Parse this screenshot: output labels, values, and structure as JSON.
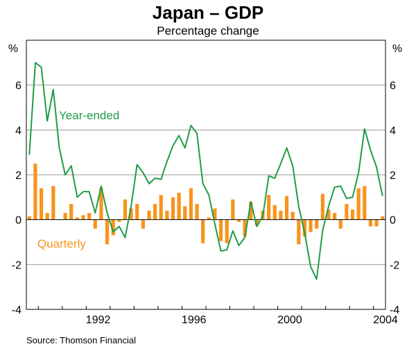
{
  "chart_data": {
    "type": "bar+line",
    "title": "Japan – GDP",
    "subtitle": "Percentage change",
    "unit_left": "%",
    "unit_right": "%",
    "source": "Source: Thomson Financial",
    "ylim": [
      -4,
      8
    ],
    "yticks": [
      -4,
      -2,
      0,
      2,
      4,
      6
    ],
    "xlim": [
      1989.5,
      2004.5
    ],
    "xticks": [
      1992,
      1996,
      2000,
      2004
    ],
    "grid": true,
    "series": [
      {
        "name": "Quarterly",
        "kind": "bar",
        "color": "#F7941D",
        "x": [
          1989.625,
          1989.875,
          1990.125,
          1990.375,
          1990.625,
          1990.875,
          1991.125,
          1991.375,
          1991.625,
          1991.875,
          1992.125,
          1992.375,
          1992.625,
          1992.875,
          1993.125,
          1993.375,
          1993.625,
          1993.875,
          1994.125,
          1994.375,
          1994.625,
          1994.875,
          1995.125,
          1995.375,
          1995.625,
          1995.875,
          1996.125,
          1996.375,
          1996.625,
          1996.875,
          1997.125,
          1997.375,
          1997.625,
          1997.875,
          1998.125,
          1998.375,
          1998.625,
          1998.875,
          1999.125,
          1999.375,
          1999.625,
          1999.875,
          2000.125,
          2000.375,
          2000.625,
          2000.875,
          2001.125,
          2001.375,
          2001.625,
          2001.875,
          2002.125,
          2002.375,
          2002.625,
          2002.875,
          2003.125,
          2003.375,
          2003.625,
          2003.875,
          2004.125,
          2004.375
        ],
        "values": [
          0.15,
          2.5,
          1.4,
          0.3,
          1.5,
          0.0,
          0.3,
          0.7,
          0.1,
          0.2,
          0.3,
          -0.4,
          1.4,
          -1.1,
          -0.7,
          -0.1,
          0.9,
          0.5,
          0.7,
          -0.4,
          0.4,
          0.7,
          1.1,
          0.4,
          1.0,
          1.2,
          0.6,
          1.4,
          0.7,
          -1.05,
          0.1,
          0.5,
          -0.95,
          -1.05,
          0.9,
          -0.1,
          -0.75,
          0.8,
          -0.25,
          0.4,
          1.1,
          0.65,
          0.4,
          1.05,
          0.35,
          -1.1,
          -0.75,
          -0.55,
          -0.4,
          1.15,
          0.45,
          0.3,
          -0.4,
          0.7,
          0.45,
          1.4,
          1.5,
          -0.3,
          -0.3,
          0.15
        ]
      },
      {
        "name": "Year-ended",
        "kind": "line",
        "color": "#1E9C45",
        "x": [
          1989.625,
          1989.875,
          1990.125,
          1990.375,
          1990.625,
          1990.875,
          1991.125,
          1991.375,
          1991.625,
          1991.875,
          1992.125,
          1992.375,
          1992.625,
          1992.875,
          1993.125,
          1993.375,
          1993.625,
          1993.875,
          1994.125,
          1994.375,
          1994.625,
          1994.875,
          1995.125,
          1995.375,
          1995.625,
          1995.875,
          1996.125,
          1996.375,
          1996.625,
          1996.875,
          1997.125,
          1997.375,
          1997.625,
          1997.875,
          1998.125,
          1998.375,
          1998.625,
          1998.875,
          1999.125,
          1999.375,
          1999.625,
          1999.875,
          2000.125,
          2000.375,
          2000.625,
          2000.875,
          2001.125,
          2001.375,
          2001.625,
          2001.875,
          2002.125,
          2002.375,
          2002.625,
          2002.875,
          2003.125,
          2003.375,
          2003.625,
          2003.875,
          2004.125,
          2004.375
        ],
        "values": [
          2.9,
          7.0,
          6.8,
          4.4,
          5.8,
          3.2,
          2.0,
          2.4,
          1.0,
          1.25,
          1.25,
          0.3,
          1.5,
          0.3,
          -0.55,
          -0.3,
          -0.8,
          0.6,
          2.45,
          2.1,
          1.6,
          1.85,
          1.8,
          2.6,
          3.3,
          3.75,
          3.2,
          4.2,
          3.85,
          1.6,
          1.1,
          -0.2,
          -1.4,
          -1.35,
          -0.5,
          -1.15,
          -0.8,
          0.8,
          -0.3,
          0.15,
          1.95,
          1.85,
          2.5,
          3.2,
          2.4,
          0.6,
          -0.6,
          -2.1,
          -2.65,
          -0.5,
          0.6,
          1.45,
          1.5,
          0.95,
          1.0,
          2.1,
          4.05,
          3.1,
          2.35,
          1.05
        ]
      }
    ],
    "annotations": [
      {
        "text": "Year-ended",
        "for": "Year-ended"
      },
      {
        "text": "Quarterly",
        "for": "Quarterly"
      }
    ]
  }
}
